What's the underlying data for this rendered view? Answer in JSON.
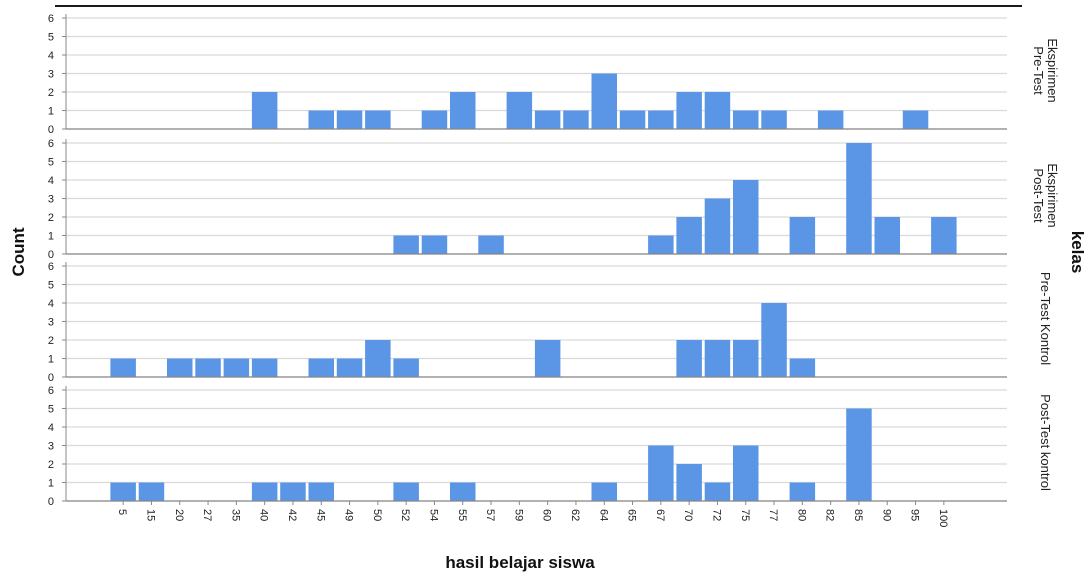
{
  "chart_data": {
    "type": "bar",
    "title": "",
    "xlabel": "hasil belajar siswa",
    "ylabel": "Count",
    "facet_label": "kelas",
    "categories": [
      "5",
      "15",
      "20",
      "27",
      "35",
      "40",
      "42",
      "45",
      "49",
      "50",
      "52",
      "54",
      "55",
      "57",
      "59",
      "60",
      "62",
      "64",
      "65",
      "67",
      "70",
      "72",
      "75",
      "77",
      "80",
      "82",
      "85",
      "90",
      "95",
      "100"
    ],
    "ylim": [
      0,
      6
    ],
    "yticks": [
      0,
      1,
      2,
      3,
      4,
      5,
      6
    ],
    "grid": true,
    "bar_color": "#5b95e6",
    "series": [
      {
        "name": "Pre-Test Ekspirimen",
        "label_lines": [
          "Pre-Test",
          "Ekspirimen"
        ],
        "values": [
          0,
          0,
          0,
          0,
          0,
          2,
          0,
          1,
          1,
          1,
          0,
          1,
          2,
          0,
          2,
          1,
          1,
          3,
          1,
          1,
          2,
          2,
          1,
          1,
          0,
          1,
          0,
          0,
          1,
          0
        ]
      },
      {
        "name": "Post-Test Ekspirimen",
        "label_lines": [
          "Post-Test",
          "Ekspirimen"
        ],
        "values": [
          0,
          0,
          0,
          0,
          0,
          0,
          0,
          0,
          0,
          0,
          1,
          1,
          0,
          1,
          0,
          0,
          0,
          0,
          0,
          1,
          2,
          3,
          4,
          0,
          2,
          0,
          6,
          2,
          0,
          2
        ]
      },
      {
        "name": "Pre-Test Kontrol",
        "label_lines": [
          "Pre-Test Kontrol"
        ],
        "values": [
          1,
          0,
          1,
          1,
          1,
          1,
          0,
          1,
          1,
          2,
          1,
          0,
          0,
          0,
          0,
          2,
          0,
          0,
          0,
          0,
          2,
          2,
          2,
          4,
          1,
          0,
          0,
          0,
          0,
          0
        ]
      },
      {
        "name": "Post-Test kontrol",
        "label_lines": [
          "Post-Test kontrol"
        ],
        "values": [
          1,
          1,
          0,
          0,
          0,
          1,
          1,
          1,
          0,
          0,
          1,
          0,
          1,
          0,
          0,
          0,
          0,
          1,
          0,
          3,
          2,
          1,
          3,
          0,
          1,
          0,
          5,
          0,
          0,
          0
        ]
      }
    ]
  }
}
